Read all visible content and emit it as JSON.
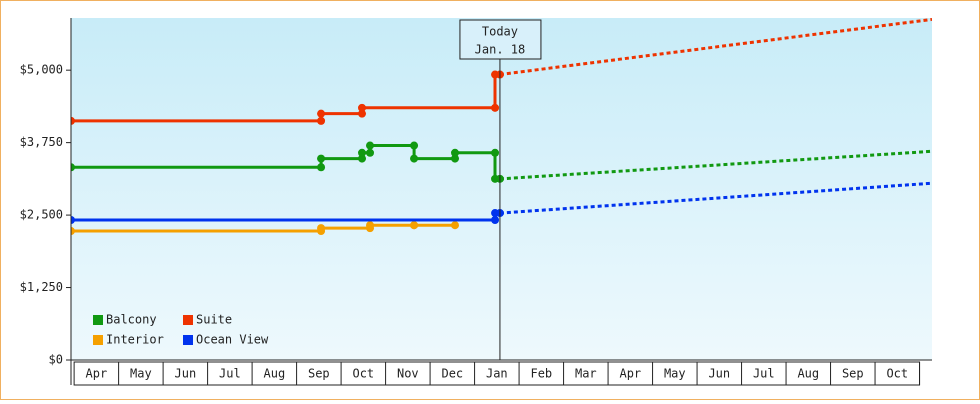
{
  "chart_data": {
    "type": "line",
    "xlim": [
      -0.07,
      19.28
    ],
    "xticks": [
      {
        "value": 0.5,
        "label": "Apr"
      },
      {
        "value": 1.5,
        "label": "May"
      },
      {
        "value": 2.5,
        "label": "Jun"
      },
      {
        "value": 3.5,
        "label": "Jul"
      },
      {
        "value": 4.5,
        "label": "Aug"
      },
      {
        "value": 5.5,
        "label": "Sep"
      },
      {
        "value": 6.5,
        "label": "Oct"
      },
      {
        "value": 7.5,
        "label": "Nov"
      },
      {
        "value": 8.5,
        "label": "Dec"
      },
      {
        "value": 9.5,
        "label": "Jan"
      },
      {
        "value": 10.5,
        "label": "Feb"
      },
      {
        "value": 11.5,
        "label": "Mar"
      },
      {
        "value": 12.5,
        "label": "Apr"
      },
      {
        "value": 13.5,
        "label": "May"
      },
      {
        "value": 14.5,
        "label": "Jun"
      },
      {
        "value": 15.5,
        "label": "Jul"
      },
      {
        "value": 16.5,
        "label": "Aug"
      },
      {
        "value": 17.5,
        "label": "Sep"
      },
      {
        "value": 18.5,
        "label": "Oct"
      }
    ],
    "ylim": [
      0,
      5900
    ],
    "yticks": [
      {
        "value": 0,
        "label": "$0"
      },
      {
        "value": 1250,
        "label": "$1,250"
      },
      {
        "value": 2500,
        "label": "$2,500"
      },
      {
        "value": 3750,
        "label": "$3,750"
      },
      {
        "value": 5000,
        "label": "$5,000"
      }
    ],
    "today": {
      "x": 9.57,
      "label": [
        "Today",
        "Jan. 18"
      ]
    },
    "legend": "bottom-left",
    "series": [
      {
        "name": "Balcony",
        "color": "#119911",
        "x": [
          -0.07,
          5.55,
          5.55,
          6.47,
          6.47,
          6.65,
          6.65,
          7.64,
          7.64,
          8.56,
          8.56,
          9.46,
          9.46,
          9.57
        ],
        "values": [
          3325,
          3325,
          3475,
          3475,
          3575,
          3575,
          3700,
          3700,
          3475,
          3475,
          3575,
          3575,
          3125,
          3125
        ],
        "projected_x": [
          9.57,
          19.28
        ],
        "projected_values": [
          3125,
          3600
        ]
      },
      {
        "name": "Suite",
        "color": "#ee3300",
        "x": [
          -0.07,
          5.55,
          5.55,
          6.47,
          6.47,
          9.46,
          9.46,
          9.57
        ],
        "values": [
          4125,
          4125,
          4250,
          4250,
          4350,
          4350,
          4925,
          4925
        ],
        "projected_x": [
          9.57,
          19.28
        ],
        "projected_values": [
          4925,
          5875
        ]
      },
      {
        "name": "Interior",
        "color": "#f5a000",
        "x": [
          -0.07,
          5.55,
          5.55,
          6.65,
          6.65,
          7.64,
          7.64,
          8.56
        ],
        "values": [
          2225,
          2225,
          2275,
          2275,
          2325,
          2325,
          2325,
          2325
        ]
      },
      {
        "name": "Ocean View",
        "color": "#0033ee",
        "x": [
          -0.07,
          9.46,
          9.46,
          9.57
        ],
        "values": [
          2415,
          2415,
          2535,
          2535
        ],
        "projected_x": [
          9.57,
          19.28
        ],
        "projected_values": [
          2535,
          3050
        ]
      }
    ]
  }
}
